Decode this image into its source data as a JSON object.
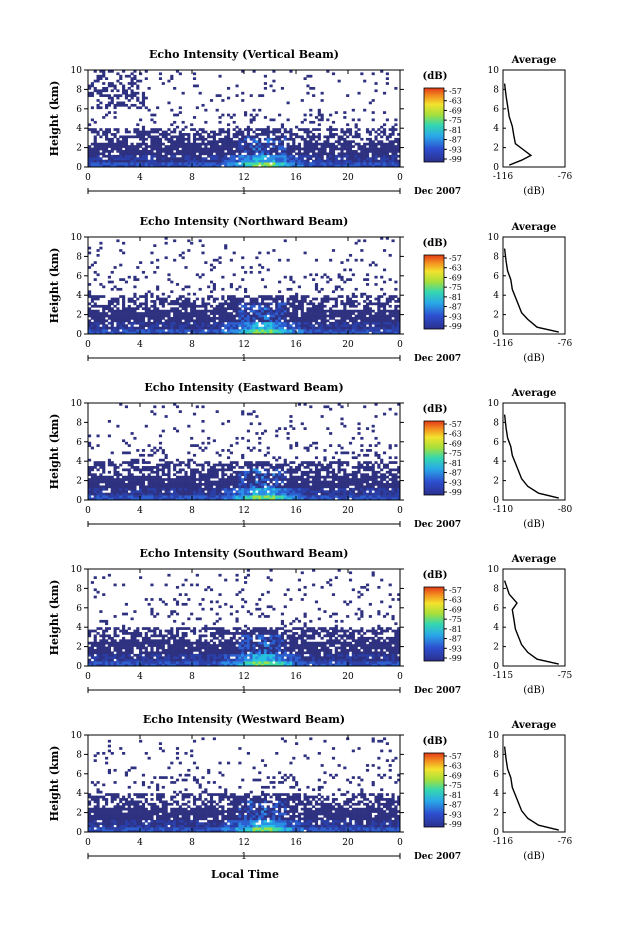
{
  "figure": {
    "x_label": "Local Time",
    "date_month": "Dec 2007",
    "day_label": "1",
    "colorbar_unit": "(dB)",
    "avg_title": "Average",
    "avg_unit": "(dB)",
    "y_label": "Height (km)"
  },
  "chart_data": [
    {
      "type": "heatmap",
      "title": "Echo Intensity (Vertical Beam)",
      "xlabel": "Local Time",
      "ylabel": "Height (km)",
      "xlim": [
        0,
        24
      ],
      "ylim": [
        0,
        10
      ],
      "x_ticks": [
        "0",
        "4",
        "8",
        "12",
        "16",
        "20",
        "0"
      ],
      "y_ticks": [
        "0",
        "2",
        "4",
        "6",
        "8",
        "10"
      ],
      "colorbar": {
        "label": "(dB)",
        "ticks": [
          -57,
          -63,
          -69,
          -75,
          -81,
          -87,
          -93,
          -99
        ]
      },
      "average_profile": {
        "title": "Average",
        "xlabel": "(dB)",
        "x_ticks": [
          "-116",
          "-76"
        ],
        "xlim": [
          -116,
          -76
        ],
        "ylim": [
          0,
          10
        ],
        "points": [
          [
            -112,
            0.2
          ],
          [
            -104,
            0.7
          ],
          [
            -98,
            1.2
          ],
          [
            -103,
            1.8
          ],
          [
            -108,
            2.4
          ],
          [
            -109,
            3.2
          ],
          [
            -110,
            4.2
          ],
          [
            -112,
            5.2
          ],
          [
            -113,
            6.3
          ],
          [
            -114,
            7.3
          ],
          [
            -115,
            8.6
          ]
        ]
      }
    },
    {
      "type": "heatmap",
      "title": "Echo Intensity (Northward Beam)",
      "xlabel": "Local Time",
      "ylabel": "Height (km)",
      "xlim": [
        0,
        24
      ],
      "ylim": [
        0,
        10
      ],
      "x_ticks": [
        "0",
        "4",
        "8",
        "12",
        "16",
        "20",
        "0"
      ],
      "y_ticks": [
        "0",
        "2",
        "4",
        "6",
        "8",
        "10"
      ],
      "colorbar": {
        "label": "(dB)",
        "ticks": [
          -57,
          -63,
          -69,
          -75,
          -81,
          -87,
          -93,
          -99
        ]
      },
      "average_profile": {
        "title": "Average",
        "xlabel": "(dB)",
        "x_ticks": [
          "-116",
          "-76"
        ],
        "xlim": [
          -116,
          -76
        ],
        "ylim": [
          0,
          10
        ],
        "points": [
          [
            -80,
            0.2
          ],
          [
            -94,
            0.7
          ],
          [
            -100,
            1.5
          ],
          [
            -104,
            2.2
          ],
          [
            -106,
            3.0
          ],
          [
            -108,
            3.8
          ],
          [
            -110,
            4.6
          ],
          [
            -111,
            5.6
          ],
          [
            -113,
            6.5
          ],
          [
            -114,
            7.5
          ],
          [
            -115,
            8.8
          ]
        ]
      }
    },
    {
      "type": "heatmap",
      "title": "Echo Intensity (Eastward Beam)",
      "xlabel": "Local Time",
      "ylabel": "Height (km)",
      "xlim": [
        0,
        24
      ],
      "ylim": [
        0,
        10
      ],
      "x_ticks": [
        "0",
        "4",
        "8",
        "12",
        "16",
        "20",
        "0"
      ],
      "y_ticks": [
        "0",
        "2",
        "4",
        "6",
        "8",
        "10"
      ],
      "colorbar": {
        "label": "(dB)",
        "ticks": [
          -57,
          -63,
          -69,
          -75,
          -81,
          -87,
          -93,
          -99
        ]
      },
      "average_profile": {
        "title": "Average",
        "xlabel": "(dB)",
        "x_ticks": [
          "-110",
          "-80"
        ],
        "xlim": [
          -116,
          -76
        ],
        "ylim": [
          0,
          10
        ],
        "points": [
          [
            -80,
            0.2
          ],
          [
            -93,
            0.7
          ],
          [
            -100,
            1.4
          ],
          [
            -104,
            2.2
          ],
          [
            -106,
            3.0
          ],
          [
            -108,
            3.8
          ],
          [
            -110,
            4.6
          ],
          [
            -111,
            5.5
          ],
          [
            -113,
            6.4
          ],
          [
            -114,
            7.4
          ],
          [
            -115,
            8.8
          ]
        ]
      }
    },
    {
      "type": "heatmap",
      "title": "Echo Intensity (Southward Beam)",
      "xlabel": "Local Time",
      "ylabel": "Height (km)",
      "xlim": [
        0,
        24
      ],
      "ylim": [
        0,
        10
      ],
      "x_ticks": [
        "0",
        "4",
        "8",
        "12",
        "16",
        "20",
        "0"
      ],
      "y_ticks": [
        "0",
        "2",
        "4",
        "6",
        "8",
        "10"
      ],
      "colorbar": {
        "label": "(dB)",
        "ticks": [
          -57,
          -63,
          -69,
          -75,
          -81,
          -87,
          -93,
          -99
        ]
      },
      "average_profile": {
        "title": "Average",
        "xlabel": "(dB)",
        "x_ticks": [
          "-115",
          "-75"
        ],
        "xlim": [
          -116,
          -76
        ],
        "ylim": [
          0,
          10
        ],
        "points": [
          [
            -80,
            0.2
          ],
          [
            -94,
            0.7
          ],
          [
            -100,
            1.4
          ],
          [
            -104,
            2.2
          ],
          [
            -106,
            3.0
          ],
          [
            -108,
            3.8
          ],
          [
            -109,
            4.8
          ],
          [
            -110,
            5.8
          ],
          [
            -107,
            6.5
          ],
          [
            -112,
            7.4
          ],
          [
            -115,
            8.8
          ]
        ]
      }
    },
    {
      "type": "heatmap",
      "title": "Echo Intensity (Westward Beam)",
      "xlabel": "Local Time",
      "ylabel": "Height (km)",
      "xlim": [
        0,
        24
      ],
      "ylim": [
        0,
        10
      ],
      "x_ticks": [
        "0",
        "4",
        "8",
        "12",
        "16",
        "20",
        "0"
      ],
      "y_ticks": [
        "0",
        "2",
        "4",
        "6",
        "8",
        "10"
      ],
      "colorbar": {
        "label": "(dB)",
        "ticks": [
          -57,
          -63,
          -69,
          -75,
          -81,
          -87,
          -93,
          -99
        ]
      },
      "average_profile": {
        "title": "Average",
        "xlabel": "(dB)",
        "x_ticks": [
          "-116",
          "-76"
        ],
        "xlim": [
          -116,
          -76
        ],
        "ylim": [
          0,
          10
        ],
        "points": [
          [
            -80,
            0.2
          ],
          [
            -93,
            0.7
          ],
          [
            -100,
            1.4
          ],
          [
            -104,
            2.2
          ],
          [
            -106,
            3.0
          ],
          [
            -108,
            3.8
          ],
          [
            -110,
            4.6
          ],
          [
            -111,
            5.6
          ],
          [
            -113,
            6.5
          ],
          [
            -114,
            7.5
          ],
          [
            -115,
            8.8
          ]
        ]
      }
    }
  ]
}
